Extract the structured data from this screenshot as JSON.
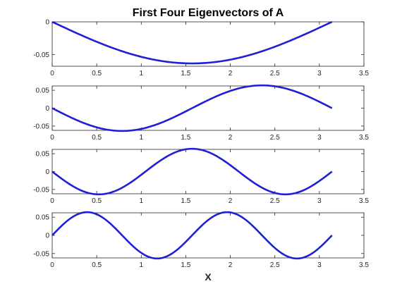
{
  "chart_data": {
    "type": "line",
    "title": "First Four Eigenvectors of A",
    "xlabel": "X",
    "line_color": "#1f1fd6",
    "xlim": [
      0,
      3.5
    ],
    "x_ticks": [
      0,
      0.5,
      1,
      1.5,
      2,
      2.5,
      3,
      3.5
    ],
    "x_tick_labels": [
      "0",
      "0.5",
      "1",
      "1.5",
      "2",
      "2.5",
      "3",
      "3.5"
    ],
    "x_range": [
      0,
      3.1416
    ],
    "grid": false,
    "legend": "none",
    "panels": [
      {
        "name": "",
        "mode": 1,
        "amplitude": 0.0637,
        "sign": -1,
        "ylim": [
          -0.068,
          0
        ],
        "y_ticks": [
          0,
          -0.05
        ],
        "y_tick_labels": [
          "0",
          "-0.05"
        ],
        "samples": [
          {
            "x": 0,
            "y": 0
          },
          {
            "x": 0.785,
            "y": -0.045
          },
          {
            "x": 1.571,
            "y": -0.0637
          },
          {
            "x": 2.356,
            "y": -0.045
          },
          {
            "x": 3.142,
            "y": 0
          }
        ]
      },
      {
        "name": "",
        "mode": 2,
        "amplitude": 0.0637,
        "sign": -1,
        "ylim": [
          -0.062,
          0.062
        ],
        "y_ticks": [
          0.05,
          0,
          -0.05
        ],
        "y_tick_labels": [
          "0.05",
          "0",
          "-0.05"
        ],
        "samples": [
          {
            "x": 0,
            "y": 0
          },
          {
            "x": 0.785,
            "y": -0.0637
          },
          {
            "x": 1.571,
            "y": 0
          },
          {
            "x": 2.356,
            "y": 0.0637
          },
          {
            "x": 3.142,
            "y": 0
          }
        ]
      },
      {
        "name": "",
        "mode": 3,
        "amplitude": 0.0637,
        "sign": -1,
        "ylim": [
          -0.062,
          0.062
        ],
        "y_ticks": [
          0.05,
          0,
          -0.05
        ],
        "y_tick_labels": [
          "0.05",
          "0",
          "-0.05"
        ],
        "samples": [
          {
            "x": 0,
            "y": 0
          },
          {
            "x": 0.524,
            "y": -0.0637
          },
          {
            "x": 1.571,
            "y": 0.0637
          },
          {
            "x": 2.618,
            "y": -0.0637
          },
          {
            "x": 3.142,
            "y": 0
          }
        ]
      },
      {
        "name": "",
        "mode": 4,
        "amplitude": 0.0637,
        "sign": 1,
        "ylim": [
          -0.062,
          0.062
        ],
        "y_ticks": [
          0.05,
          0,
          -0.05
        ],
        "y_tick_labels": [
          "0.05",
          "0",
          "-0.05"
        ],
        "samples": [
          {
            "x": 0,
            "y": 0
          },
          {
            "x": 0.393,
            "y": 0.0637
          },
          {
            "x": 1.178,
            "y": -0.0637
          },
          {
            "x": 1.963,
            "y": 0.0637
          },
          {
            "x": 2.749,
            "y": -0.0637
          },
          {
            "x": 3.142,
            "y": 0
          }
        ]
      }
    ]
  }
}
